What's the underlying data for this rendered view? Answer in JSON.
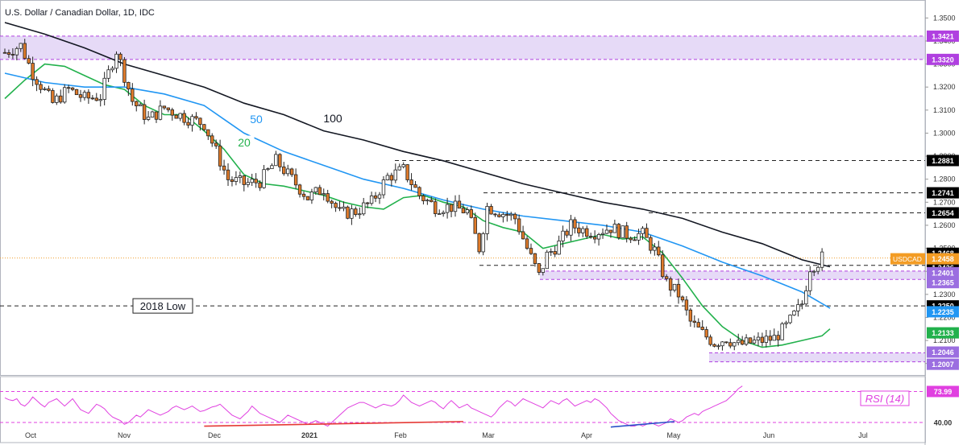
{
  "chart_data": {
    "type": "candlestick",
    "title": "U.S. Dollar / Canadian Dollar, 1D, IDC",
    "ylim": [
      1.195,
      1.355
    ],
    "y_ticks": [
      "1.3500",
      "1.3400",
      "1.3300",
      "1.3200",
      "1.3100",
      "1.3000",
      "1.2900",
      "1.2800",
      "1.2700",
      "1.2600",
      "1.2500",
      "1.2400",
      "1.2300",
      "1.2200",
      "1.2100",
      "1.2000"
    ],
    "x_labels": [
      "Oct",
      "Nov",
      "Dec",
      "2021",
      "Feb",
      "Mar",
      "Apr",
      "May",
      "Jun",
      "Jul"
    ],
    "last_price": {
      "symbol": "USDCAD",
      "value": "1.2458"
    },
    "levels": [
      "1.3421",
      "1.3320",
      "1.2881",
      "1.2741",
      "1.2654",
      "1.2468",
      "1.2426",
      "1.2401",
      "1.2365",
      "1.2250",
      "1.2235",
      "1.2133",
      "1.2046",
      "1.2007"
    ],
    "zones": [
      {
        "from": 1.332,
        "to": 1.3421
      },
      {
        "from": 1.2365,
        "to": 1.2401
      },
      {
        "from": 1.2007,
        "to": 1.2046
      }
    ],
    "low_2018": {
      "label": "2018 Low",
      "value": 1.225
    },
    "moving_averages": [
      {
        "label": "20",
        "color": "#22b14c",
        "points": [
          [
            0,
            1.315
          ],
          [
            5,
            1.323
          ],
          [
            10,
            1.33
          ],
          [
            15,
            1.329
          ],
          [
            20,
            1.325
          ],
          [
            25,
            1.321
          ],
          [
            30,
            1.319
          ],
          [
            35,
            1.312
          ],
          [
            40,
            1.308
          ],
          [
            45,
            1.308
          ],
          [
            50,
            1.301
          ],
          [
            55,
            1.293
          ],
          [
            60,
            1.282
          ],
          [
            65,
            1.278
          ],
          [
            70,
            1.277
          ],
          [
            75,
            1.275
          ],
          [
            80,
            1.273
          ],
          [
            85,
            1.27
          ],
          [
            90,
            1.268
          ],
          [
            95,
            1.267
          ],
          [
            100,
            1.272
          ],
          [
            105,
            1.273
          ],
          [
            110,
            1.27
          ],
          [
            115,
            1.268
          ],
          [
            120,
            1.262
          ],
          [
            125,
            1.259
          ],
          [
            130,
            1.257
          ],
          [
            135,
            1.25
          ],
          [
            140,
            1.252
          ],
          [
            145,
            1.254
          ],
          [
            150,
            1.256
          ],
          [
            155,
            1.254
          ],
          [
            160,
            1.255
          ],
          [
            165,
            1.248
          ],
          [
            170,
            1.237
          ],
          [
            175,
            1.225
          ],
          [
            180,
            1.216
          ],
          [
            185,
            1.21
          ],
          [
            190,
            1.207
          ],
          [
            195,
            1.208
          ],
          [
            200,
            1.21
          ],
          [
            205,
            1.212
          ],
          [
            207,
            1.215
          ]
        ]
      },
      {
        "label": "50",
        "color": "#2196f3",
        "points": [
          [
            0,
            1.326
          ],
          [
            10,
            1.322
          ],
          [
            20,
            1.32
          ],
          [
            30,
            1.32
          ],
          [
            40,
            1.317
          ],
          [
            50,
            1.312
          ],
          [
            55,
            1.306
          ],
          [
            60,
            1.3
          ],
          [
            70,
            1.292
          ],
          [
            80,
            1.286
          ],
          [
            90,
            1.28
          ],
          [
            100,
            1.276
          ],
          [
            110,
            1.271
          ],
          [
            120,
            1.267
          ],
          [
            130,
            1.264
          ],
          [
            140,
            1.262
          ],
          [
            150,
            1.26
          ],
          [
            160,
            1.257
          ],
          [
            170,
            1.251
          ],
          [
            180,
            1.244
          ],
          [
            190,
            1.238
          ],
          [
            200,
            1.231
          ],
          [
            207,
            1.224
          ]
        ]
      },
      {
        "label": "100",
        "color": "#131722",
        "points": [
          [
            0,
            1.348
          ],
          [
            10,
            1.343
          ],
          [
            20,
            1.337
          ],
          [
            30,
            1.33
          ],
          [
            40,
            1.325
          ],
          [
            50,
            1.32
          ],
          [
            60,
            1.313
          ],
          [
            70,
            1.308
          ],
          [
            80,
            1.301
          ],
          [
            90,
            1.297
          ],
          [
            100,
            1.292
          ],
          [
            110,
            1.288
          ],
          [
            120,
            1.283
          ],
          [
            130,
            1.278
          ],
          [
            140,
            1.274
          ],
          [
            150,
            1.27
          ],
          [
            160,
            1.267
          ],
          [
            170,
            1.263
          ],
          [
            180,
            1.257
          ],
          [
            190,
            1.252
          ],
          [
            200,
            1.245
          ],
          [
            207,
            1.242
          ]
        ]
      }
    ],
    "candle_anchors": [
      [
        0,
        1.335
      ],
      [
        4,
        1.338
      ],
      [
        7,
        1.326
      ],
      [
        12,
        1.313
      ],
      [
        16,
        1.319
      ],
      [
        20,
        1.315
      ],
      [
        24,
        1.316
      ],
      [
        28,
        1.336
      ],
      [
        32,
        1.314
      ],
      [
        36,
        1.306
      ],
      [
        40,
        1.311
      ],
      [
        45,
        1.307
      ],
      [
        50,
        1.304
      ],
      [
        53,
        1.292
      ],
      [
        56,
        1.28
      ],
      [
        60,
        1.278
      ],
      [
        64,
        1.279
      ],
      [
        68,
        1.288
      ],
      [
        72,
        1.28
      ],
      [
        76,
        1.272
      ],
      [
        80,
        1.276
      ],
      [
        84,
        1.265
      ],
      [
        88,
        1.266
      ],
      [
        92,
        1.27
      ],
      [
        96,
        1.281
      ],
      [
        100,
        1.284
      ],
      [
        104,
        1.273
      ],
      [
        108,
        1.268
      ],
      [
        112,
        1.268
      ],
      [
        116,
        1.266
      ],
      [
        119,
        1.25
      ],
      [
        121,
        1.268
      ],
      [
        124,
        1.266
      ],
      [
        128,
        1.263
      ],
      [
        131,
        1.25
      ],
      [
        134,
        1.238
      ],
      [
        136,
        1.247
      ],
      [
        139,
        1.252
      ],
      [
        142,
        1.26
      ],
      [
        145,
        1.258
      ],
      [
        148,
        1.257
      ],
      [
        152,
        1.259
      ],
      [
        156,
        1.256
      ],
      [
        160,
        1.256
      ],
      [
        163,
        1.249
      ],
      [
        166,
        1.235
      ],
      [
        169,
        1.23
      ],
      [
        172,
        1.218
      ],
      [
        175,
        1.213
      ],
      [
        178,
        1.209
      ],
      [
        181,
        1.211
      ],
      [
        184,
        1.208
      ],
      [
        187,
        1.209
      ],
      [
        190,
        1.21
      ],
      [
        193,
        1.211
      ],
      [
        196,
        1.216
      ],
      [
        198,
        1.221
      ],
      [
        200,
        1.226
      ],
      [
        202,
        1.242
      ],
      [
        204,
        1.244
      ],
      [
        205,
        1.246
      ]
    ],
    "rsi": {
      "label": "RSI (14)",
      "levels": [
        "73.99",
        "40.00"
      ],
      "values": [
        67,
        65,
        64,
        66,
        60,
        58,
        62,
        68,
        64,
        60,
        57,
        62,
        64,
        66,
        62,
        58,
        62,
        66,
        60,
        54,
        52,
        50,
        55,
        60,
        58,
        55,
        50,
        46,
        44,
        42,
        38,
        40,
        44,
        48,
        46,
        50,
        54,
        52,
        50,
        48,
        50,
        52,
        56,
        58,
        56,
        54,
        56,
        58,
        55,
        52,
        53,
        55,
        57,
        58,
        60,
        56,
        52,
        48,
        46,
        44,
        48,
        52,
        58,
        54,
        50,
        48,
        46,
        44,
        42,
        40,
        44,
        48,
        46,
        44,
        42,
        40,
        38,
        40,
        42,
        40,
        38,
        36,
        40,
        44,
        48,
        52,
        56,
        58,
        60,
        62,
        62,
        60,
        58,
        56,
        58,
        60,
        59,
        58,
        60,
        64,
        70,
        66,
        62,
        60,
        58,
        60,
        62,
        64,
        62,
        58,
        55,
        60,
        64,
        60,
        56,
        58,
        60,
        56,
        54,
        52,
        50,
        48,
        46,
        50,
        56,
        60,
        64,
        62,
        58,
        62,
        66,
        64,
        62,
        60,
        58,
        56,
        60,
        64,
        62,
        60,
        64,
        66,
        62,
        58,
        60,
        62,
        64,
        62,
        66,
        64,
        60,
        56,
        50,
        46,
        42,
        40,
        38,
        36,
        36,
        38,
        36,
        38,
        40,
        38,
        36,
        38,
        40,
        44,
        42,
        40,
        42,
        46,
        48,
        50,
        48,
        52,
        54,
        56,
        58,
        60,
        62,
        64,
        68,
        72,
        77,
        80
      ],
      "trendlines": [
        {
          "color": "#e53935",
          "from": [
            50,
            36
          ],
          "to": [
            115,
            41
          ]
        },
        {
          "color": "#2950c8",
          "from": [
            152,
            35
          ],
          "to": [
            168,
            41
          ]
        }
      ]
    },
    "grid": false
  }
}
